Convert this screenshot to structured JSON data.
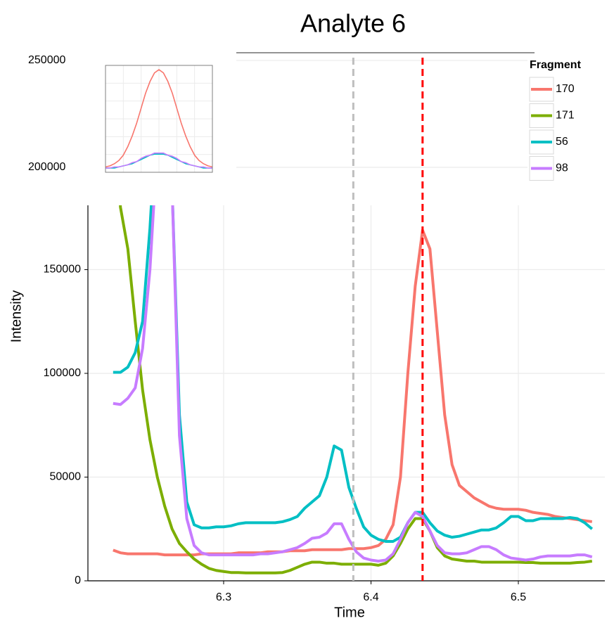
{
  "chart_data": [
    {
      "type": "line",
      "title": "Analyte 6",
      "x_label": "Time",
      "y_label": "Intensity",
      "x": [
        6.225,
        6.23,
        6.235,
        6.24,
        6.245,
        6.25,
        6.255,
        6.26,
        6.265,
        6.27,
        6.275,
        6.28,
        6.285,
        6.29,
        6.295,
        6.3,
        6.305,
        6.31,
        6.315,
        6.32,
        6.325,
        6.33,
        6.335,
        6.34,
        6.345,
        6.35,
        6.355,
        6.36,
        6.365,
        6.37,
        6.375,
        6.38,
        6.385,
        6.39,
        6.395,
        6.4,
        6.405,
        6.41,
        6.415,
        6.42,
        6.425,
        6.43,
        6.435,
        6.44,
        6.445,
        6.45,
        6.455,
        6.46,
        6.465,
        6.47,
        6.475,
        6.48,
        6.485,
        6.49,
        6.495,
        6.5,
        6.505,
        6.51,
        6.515,
        6.52,
        6.525,
        6.53,
        6.535,
        6.54,
        6.545,
        6.55
      ],
      "series": [
        {
          "name": "170",
          "color": "#F8766D",
          "values": [
            14800,
            13500,
            13000,
            13000,
            13000,
            13000,
            13000,
            12500,
            12500,
            12500,
            12500,
            12500,
            13000,
            13000,
            13000,
            13000,
            13000,
            13500,
            13500,
            13500,
            13500,
            14000,
            14000,
            14000,
            14500,
            14500,
            14500,
            15000,
            15000,
            15000,
            15000,
            15000,
            15500,
            15500,
            15500,
            16000,
            17000,
            20000,
            27000,
            50000,
            100000,
            142000,
            169000,
            160000,
            120000,
            80000,
            56000,
            46000,
            43000,
            40000,
            38000,
            36000,
            35000,
            34500,
            34500,
            34500,
            34000,
            33000,
            32500,
            32000,
            31000,
            30500,
            30000,
            29500,
            29000,
            28500
          ]
        },
        {
          "name": "171",
          "color": "#7CAE00",
          "values": [
            230000,
            180000,
            160000,
            125000,
            92000,
            68000,
            50000,
            36000,
            25000,
            18000,
            14000,
            10500,
            8000,
            6000,
            5000,
            4500,
            4000,
            4000,
            3800,
            3800,
            3800,
            3800,
            3800,
            4000,
            5000,
            6500,
            8000,
            9000,
            9000,
            8500,
            8500,
            8000,
            8000,
            8000,
            8000,
            8000,
            7500,
            8500,
            12000,
            18000,
            25000,
            30000,
            30000,
            24000,
            16000,
            12000,
            10500,
            10000,
            9500,
            9500,
            9000,
            9000,
            9000,
            9000,
            9000,
            9000,
            8800,
            8800,
            8500,
            8500,
            8500,
            8500,
            8500,
            8800,
            9000,
            9500
          ]
        },
        {
          "name": "56",
          "color": "#00BFC4",
          "values": [
            100500,
            100500,
            103000,
            110000,
            125000,
            170000,
            230000,
            260000,
            190000,
            80000,
            38000,
            27000,
            25500,
            25500,
            26000,
            26000,
            26500,
            27500,
            28000,
            28000,
            28000,
            28000,
            28000,
            28500,
            29500,
            31000,
            35000,
            38000,
            41000,
            50000,
            65000,
            63000,
            45000,
            35000,
            26000,
            22000,
            20000,
            19000,
            19000,
            21000,
            28000,
            33000,
            33000,
            28000,
            24000,
            22000,
            21000,
            21500,
            22500,
            23500,
            24500,
            24500,
            25500,
            28000,
            31000,
            31000,
            29000,
            29000,
            30000,
            30000,
            30000,
            30000,
            30500,
            30000,
            28000,
            25000
          ]
        },
        {
          "name": "98",
          "color": "#C77CFF",
          "values": [
            85500,
            85000,
            88000,
            93000,
            112000,
            150000,
            210000,
            260000,
            190000,
            70000,
            30000,
            17000,
            13500,
            12500,
            12500,
            12500,
            12500,
            12500,
            12500,
            12500,
            13000,
            13000,
            13500,
            14000,
            15000,
            16000,
            18000,
            20500,
            21000,
            23000,
            27500,
            27500,
            20000,
            14000,
            11000,
            10000,
            9500,
            10000,
            13000,
            20000,
            28000,
            33000,
            31000,
            24000,
            17000,
            13500,
            13000,
            13000,
            13500,
            15000,
            16500,
            16500,
            15000,
            12500,
            11000,
            10500,
            10000,
            10500,
            11500,
            12000,
            12000,
            12000,
            12000,
            12500,
            12500,
            11500
          ]
        }
      ],
      "xlim": [
        6.2079,
        6.5587
      ],
      "xticks": [
        6.3,
        6.4,
        6.5
      ],
      "ylim": [
        0,
        181000
      ],
      "yticks": [
        0,
        50000,
        100000,
        150000
      ],
      "vlines": [
        {
          "x": 6.388,
          "color": "#BEBEBE"
        },
        {
          "x": 6.435,
          "color": "#FF0000"
        }
      ],
      "grid": true,
      "legend_title": "Fragment",
      "legend_position": "top-right"
    },
    {
      "type": "axis",
      "ylim": [
        182900,
        253600
      ],
      "yticks": [
        200000,
        250000
      ],
      "grid": true
    },
    {
      "type": "line",
      "x": [
        0,
        1,
        2,
        3,
        4,
        5,
        6,
        7,
        8,
        9,
        10,
        11,
        12,
        13,
        14,
        15,
        16,
        17,
        18,
        19,
        20,
        21,
        22,
        23,
        24
      ],
      "series": [
        {
          "color": "#F8766D",
          "values": [
            5,
            6,
            8,
            11,
            16,
            24,
            34,
            46,
            60,
            74,
            85,
            93,
            96,
            93,
            85,
            74,
            60,
            46,
            34,
            24,
            16,
            11,
            8,
            6,
            5
          ]
        },
        {
          "color": "#00BFC4",
          "values": [
            4,
            4,
            4,
            5,
            6,
            7,
            8,
            10,
            12,
            14,
            16,
            17,
            17,
            17,
            16,
            14,
            12,
            10,
            8,
            7,
            6,
            5,
            4,
            4,
            4
          ]
        },
        {
          "color": "#C77CFF",
          "values": [
            4,
            4,
            5,
            5,
            6,
            7,
            9,
            10,
            13,
            15,
            16,
            18,
            18,
            18,
            16,
            15,
            13,
            10,
            9,
            7,
            6,
            5,
            5,
            4,
            4
          ]
        }
      ],
      "xlim": [
        0,
        24
      ],
      "ylim": [
        0,
        100
      ],
      "grid": true
    }
  ]
}
